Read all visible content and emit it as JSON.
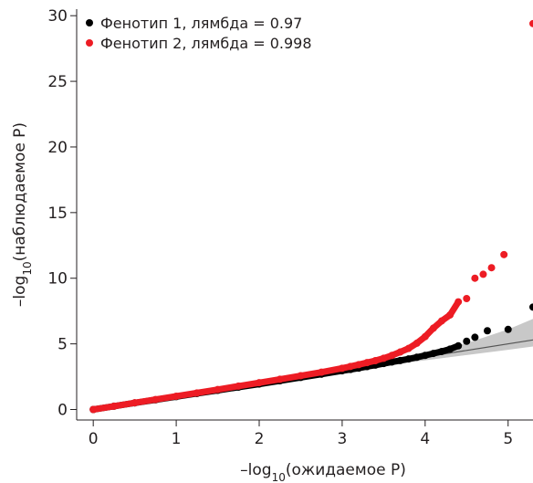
{
  "chart_data": {
    "type": "scatter",
    "xlabel": {
      "prefix": "–log",
      "sub": "10",
      "suffix": "(ожидаемое P)"
    },
    "ylabel": {
      "prefix": "–log",
      "sub": "10",
      "suffix": "(наблюдаемое P)"
    },
    "xlim": [
      -0.2,
      5.3
    ],
    "ylim": [
      -0.8,
      30.5
    ],
    "xticks": [
      0,
      1,
      2,
      3,
      4,
      5
    ],
    "yticks": [
      0,
      5,
      10,
      15,
      20,
      25,
      30
    ],
    "grid": false,
    "legend_position": "top-left",
    "colors": {
      "series1": "#000000",
      "series2": "#ed1c24",
      "band": "#c8c8c8",
      "line": "#555555"
    },
    "series": [
      {
        "name": "Фенотип 1, лямбда = 0.97",
        "points": [
          [
            0,
            0
          ],
          [
            0.25,
            0.25
          ],
          [
            0.5,
            0.5
          ],
          [
            0.75,
            0.74
          ],
          [
            1,
            0.98
          ],
          [
            1.25,
            1.22
          ],
          [
            1.5,
            1.46
          ],
          [
            1.75,
            1.7
          ],
          [
            2,
            1.94
          ],
          [
            2.25,
            2.19
          ],
          [
            2.5,
            2.44
          ],
          [
            2.75,
            2.69
          ],
          [
            3,
            2.95
          ],
          [
            3.1,
            3.05
          ],
          [
            3.2,
            3.15
          ],
          [
            3.3,
            3.27
          ],
          [
            3.4,
            3.38
          ],
          [
            3.5,
            3.5
          ],
          [
            3.6,
            3.62
          ],
          [
            3.7,
            3.73
          ],
          [
            3.8,
            3.85
          ],
          [
            3.9,
            3.98
          ],
          [
            4,
            4.12
          ],
          [
            4.1,
            4.27
          ],
          [
            4.2,
            4.42
          ],
          [
            4.3,
            4.6
          ],
          [
            4.4,
            4.85
          ],
          [
            4.5,
            5.2
          ],
          [
            4.6,
            5.5
          ],
          [
            4.75,
            6.0
          ],
          [
            5,
            6.1
          ],
          [
            5.3,
            7.8
          ]
        ]
      },
      {
        "name": "Фенотип 2, лямбда = 0.998",
        "points": [
          [
            0,
            0
          ],
          [
            0.25,
            0.25
          ],
          [
            0.5,
            0.51
          ],
          [
            0.75,
            0.76
          ],
          [
            1,
            1.01
          ],
          [
            1.25,
            1.26
          ],
          [
            1.5,
            1.52
          ],
          [
            1.75,
            1.78
          ],
          [
            2,
            2.04
          ],
          [
            2.25,
            2.3
          ],
          [
            2.5,
            2.57
          ],
          [
            2.75,
            2.84
          ],
          [
            3,
            3.14
          ],
          [
            3.1,
            3.28
          ],
          [
            3.2,
            3.42
          ],
          [
            3.3,
            3.57
          ],
          [
            3.4,
            3.72
          ],
          [
            3.5,
            3.9
          ],
          [
            3.6,
            4.12
          ],
          [
            3.7,
            4.38
          ],
          [
            3.8,
            4.65
          ],
          [
            3.9,
            5.05
          ],
          [
            4,
            5.55
          ],
          [
            4.1,
            6.2
          ],
          [
            4.2,
            6.75
          ],
          [
            4.3,
            7.2
          ],
          [
            4.4,
            8.2
          ],
          [
            4.5,
            8.45
          ],
          [
            4.6,
            10.0
          ],
          [
            4.7,
            10.3
          ],
          [
            4.8,
            10.8
          ],
          [
            4.95,
            11.8
          ],
          [
            5.3,
            29.4
          ]
        ]
      }
    ],
    "expected_line": [
      [
        0,
        0
      ],
      [
        5.3,
        5.3
      ]
    ],
    "ci_band": [
      [
        3.0,
        3.05,
        2.95
      ],
      [
        3.5,
        3.65,
        3.35
      ],
      [
        4.0,
        4.3,
        3.75
      ],
      [
        4.5,
        5.05,
        4.15
      ],
      [
        5.0,
        6.1,
        4.55
      ],
      [
        5.3,
        6.9,
        4.8
      ]
    ]
  }
}
